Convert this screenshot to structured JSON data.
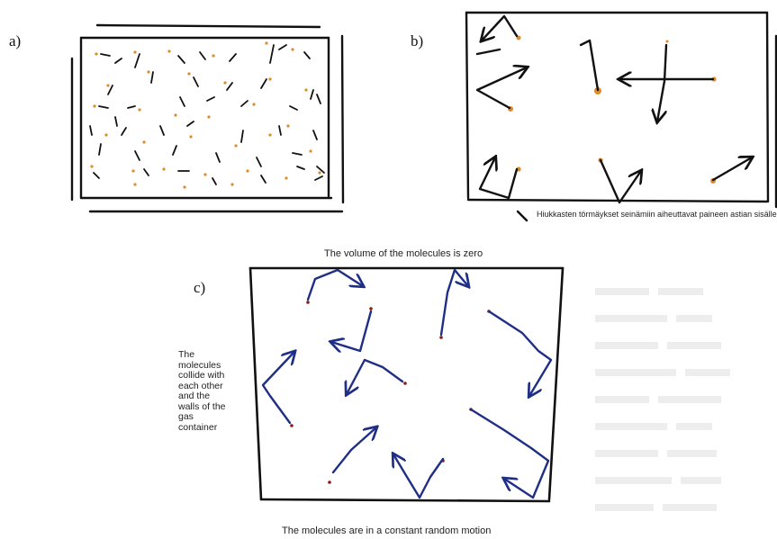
{
  "panels": {
    "a": {
      "label": "a)"
    },
    "b": {
      "label": "b)",
      "caption": "Hiukkasten törmäykset seinämiin aiheuttavat paineen astian sisälle"
    },
    "c": {
      "label": "c)",
      "caption_top": "The volume of the molecules is zero",
      "caption_side_lines": [
        "The",
        "molecules",
        "collide with",
        "each other",
        "and the",
        "walls of the",
        "gas",
        "container"
      ],
      "caption_bottom": "The molecules are in a constant random motion"
    }
  },
  "colors": {
    "ink": "#111111",
    "molecule_orange": "#e08a2a",
    "arrow_blue": "#1f2f86",
    "molecule_red": "#8b1a1a"
  }
}
